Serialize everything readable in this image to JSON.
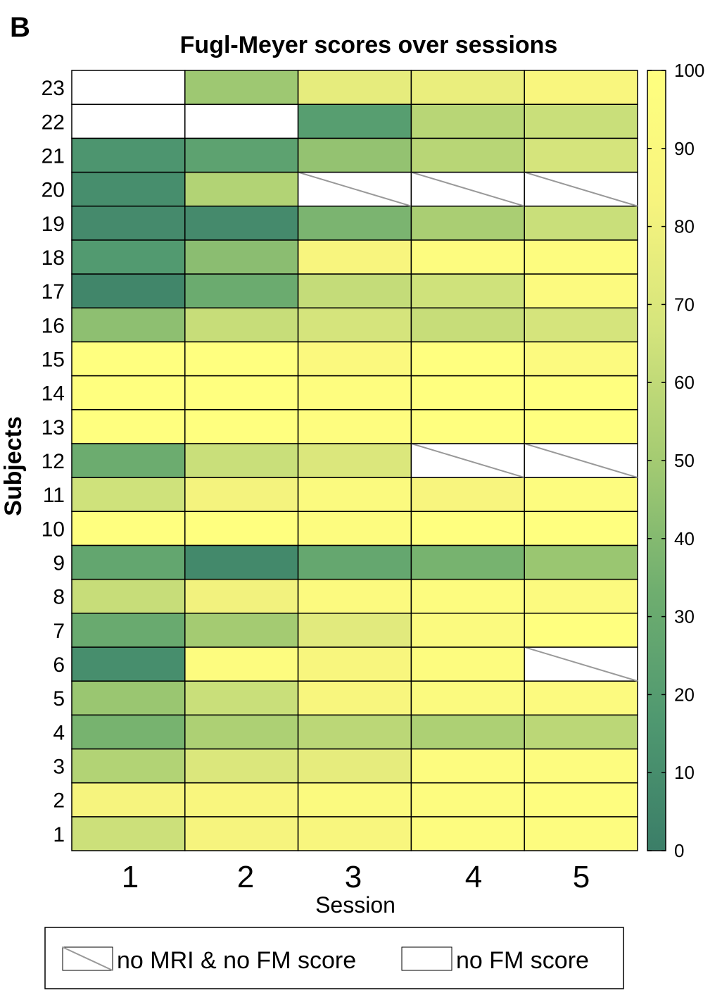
{
  "panel_label": "B",
  "chart_data": {
    "type": "heatmap",
    "title": "Fugl-Meyer scores over sessions",
    "xlabel": "Session",
    "ylabel": "Subjects",
    "x_categories": [
      "1",
      "2",
      "3",
      "4",
      "5"
    ],
    "y_categories": [
      "1",
      "2",
      "3",
      "4",
      "5",
      "6",
      "7",
      "8",
      "9",
      "10",
      "11",
      "12",
      "13",
      "14",
      "15",
      "16",
      "17",
      "18",
      "19",
      "20",
      "21",
      "22",
      "23"
    ],
    "colorbar": {
      "min": 0,
      "max": 100,
      "ticks": [
        0,
        10,
        20,
        30,
        40,
        50,
        60,
        70,
        80,
        90,
        100
      ],
      "colormap": [
        "#3b7e68",
        "#4f9870",
        "#6fae6f",
        "#a4cb72",
        "#d4e47c",
        "#f7f47e",
        "#ffff7f"
      ]
    },
    "missing_codes": {
      "no_fm": "no FM score",
      "no_mri_no_fm": "no MRI & no FM score"
    },
    "values": [
      [
        64,
        83,
        86,
        95,
        95
      ],
      [
        83,
        87,
        92,
        95,
        97
      ],
      [
        55,
        70,
        75,
        95,
        96
      ],
      [
        36,
        53,
        58,
        53,
        58
      ],
      [
        47,
        63,
        86,
        92,
        93
      ],
      [
        10,
        95,
        86,
        95,
        "no_mri_no_fm"
      ],
      [
        30,
        50,
        73,
        92,
        100
      ],
      [
        62,
        81,
        93,
        95,
        93
      ],
      [
        27,
        7,
        28,
        36,
        47
      ],
      [
        100,
        100,
        95,
        100,
        100
      ],
      [
        65,
        82,
        92,
        85,
        95
      ],
      [
        32,
        63,
        70,
        "no_mri_no_fm",
        "no_mri_no_fm"
      ],
      [
        100,
        100,
        97,
        100,
        100
      ],
      [
        100,
        100,
        97,
        100,
        100
      ],
      [
        100,
        100,
        91,
        100,
        93
      ],
      [
        43,
        62,
        67,
        62,
        67
      ],
      [
        5,
        31,
        61,
        65,
        93
      ],
      [
        18,
        42,
        85,
        95,
        96
      ],
      [
        8,
        8,
        37,
        52,
        63
      ],
      [
        10,
        55,
        "no_mri_no_fm",
        "no_mri_no_fm",
        "no_mri_no_fm"
      ],
      [
        15,
        24,
        45,
        57,
        67
      ],
      [
        "no_fm",
        "no_fm",
        21,
        57,
        63
      ],
      [
        "no_fm",
        48,
        75,
        77,
        87
      ]
    ]
  }
}
